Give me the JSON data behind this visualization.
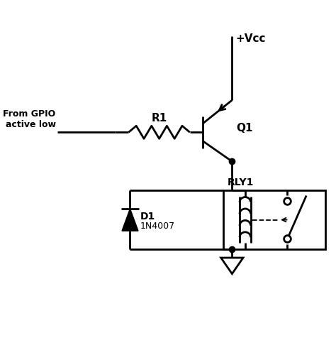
{
  "bg_color": "#ffffff",
  "line_color": "#000000",
  "line_width": 2.0,
  "vcc_label": "+Vcc",
  "q1_label": "Q1",
  "r1_label": "R1",
  "d1_label": "D1",
  "d1_part": "1N4007",
  "rly1_label": "RLY1",
  "gpio_label": "From GPIO\nactive low",
  "figsize": [
    4.74,
    5.0
  ],
  "dpi": 100
}
